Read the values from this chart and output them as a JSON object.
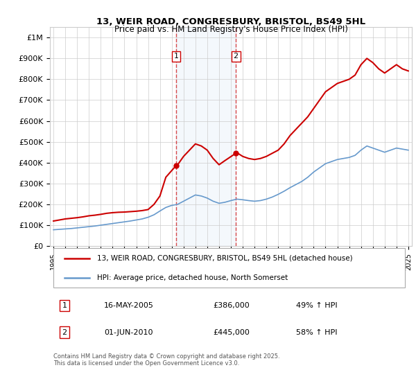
{
  "title_line1": "13, WEIR ROAD, CONGRESBURY, BRISTOL, BS49 5HL",
  "title_line2": "Price paid vs. HM Land Registry's House Price Index (HPI)",
  "ylabel_top": "£1M",
  "yticks": [
    0,
    100000,
    200000,
    300000,
    400000,
    500000,
    600000,
    700000,
    800000,
    900000,
    1000000
  ],
  "ytick_labels": [
    "£0",
    "£100K",
    "£200K",
    "£300K",
    "£400K",
    "£500K",
    "£600K",
    "£700K",
    "£800K",
    "£900K",
    "£1M"
  ],
  "ylim": [
    0,
    1050000
  ],
  "xmin_year": 1995,
  "xmax_year": 2025,
  "xtick_years": [
    1995,
    1996,
    1997,
    1998,
    1999,
    2000,
    2001,
    2002,
    2003,
    2004,
    2005,
    2006,
    2007,
    2008,
    2009,
    2010,
    2011,
    2012,
    2013,
    2014,
    2015,
    2016,
    2017,
    2018,
    2019,
    2020,
    2021,
    2022,
    2023,
    2024,
    2025
  ],
  "red_line_color": "#cc0000",
  "blue_line_color": "#6699cc",
  "background_color": "#ffffff",
  "grid_color": "#cccccc",
  "sale1_x": 2005.37,
  "sale1_y": 386000,
  "sale1_label": "1",
  "sale2_x": 2010.42,
  "sale2_y": 445000,
  "sale2_label": "2",
  "shade_x1_start": 2005.37,
  "shade_x1_end": 2010.42,
  "legend_line1": "13, WEIR ROAD, CONGRESBURY, BRISTOL, BS49 5HL (detached house)",
  "legend_line2": "HPI: Average price, detached house, North Somerset",
  "table_row1_num": "1",
  "table_row1_date": "16-MAY-2005",
  "table_row1_price": "£386,000",
  "table_row1_hpi": "49% ↑ HPI",
  "table_row2_num": "2",
  "table_row2_date": "01-JUN-2010",
  "table_row2_price": "£445,000",
  "table_row2_hpi": "58% ↑ HPI",
  "footer": "Contains HM Land Registry data © Crown copyright and database right 2025.\nThis data is licensed under the Open Government Licence v3.0.",
  "red_x": [
    1995,
    1995.5,
    1996,
    1996.5,
    1997,
    1997.5,
    1998,
    1998.5,
    1999,
    1999.5,
    2000,
    2000.5,
    2001,
    2001.5,
    2002,
    2002.5,
    2003,
    2003.5,
    2004,
    2004.5,
    2005.37,
    2005.5,
    2006,
    2006.5,
    2007,
    2007.5,
    2008,
    2008.5,
    2009,
    2009.5,
    2010.42,
    2010.5,
    2011,
    2011.5,
    2012,
    2012.5,
    2013,
    2013.5,
    2014,
    2014.5,
    2015,
    2015.5,
    2016,
    2016.5,
    2017,
    2017.5,
    2018,
    2018.5,
    2019,
    2019.5,
    2020,
    2020.5,
    2021,
    2021.5,
    2022,
    2022.5,
    2023,
    2023.5,
    2024,
    2024.5,
    2025
  ],
  "red_y": [
    120000,
    125000,
    130000,
    133000,
    136000,
    140000,
    145000,
    148000,
    152000,
    157000,
    160000,
    162000,
    163000,
    165000,
    167000,
    170000,
    175000,
    200000,
    240000,
    330000,
    386000,
    390000,
    430000,
    460000,
    490000,
    480000,
    460000,
    420000,
    390000,
    410000,
    445000,
    448000,
    430000,
    420000,
    415000,
    420000,
    430000,
    445000,
    460000,
    490000,
    530000,
    560000,
    590000,
    620000,
    660000,
    700000,
    740000,
    760000,
    780000,
    790000,
    800000,
    820000,
    870000,
    900000,
    880000,
    850000,
    830000,
    850000,
    870000,
    850000,
    840000
  ],
  "blue_x": [
    1995,
    1995.5,
    1996,
    1996.5,
    1997,
    1997.5,
    1998,
    1998.5,
    1999,
    1999.5,
    2000,
    2000.5,
    2001,
    2001.5,
    2002,
    2002.5,
    2003,
    2003.5,
    2004,
    2004.5,
    2005,
    2005.5,
    2006,
    2006.5,
    2007,
    2007.5,
    2008,
    2008.5,
    2009,
    2009.5,
    2010,
    2010.5,
    2011,
    2011.5,
    2012,
    2012.5,
    2013,
    2013.5,
    2014,
    2014.5,
    2015,
    2015.5,
    2016,
    2016.5,
    2017,
    2017.5,
    2018,
    2018.5,
    2019,
    2019.5,
    2020,
    2020.5,
    2021,
    2021.5,
    2022,
    2022.5,
    2023,
    2023.5,
    2024,
    2024.5,
    2025
  ],
  "blue_y": [
    78000,
    80000,
    82000,
    84000,
    87000,
    90000,
    93000,
    96000,
    100000,
    104000,
    108000,
    112000,
    116000,
    120000,
    125000,
    130000,
    138000,
    150000,
    168000,
    185000,
    195000,
    200000,
    215000,
    230000,
    245000,
    240000,
    230000,
    215000,
    205000,
    210000,
    218000,
    225000,
    222000,
    218000,
    215000,
    218000,
    225000,
    235000,
    248000,
    263000,
    280000,
    295000,
    310000,
    330000,
    355000,
    375000,
    395000,
    405000,
    415000,
    420000,
    425000,
    435000,
    460000,
    480000,
    470000,
    460000,
    450000,
    460000,
    470000,
    465000,
    460000
  ]
}
